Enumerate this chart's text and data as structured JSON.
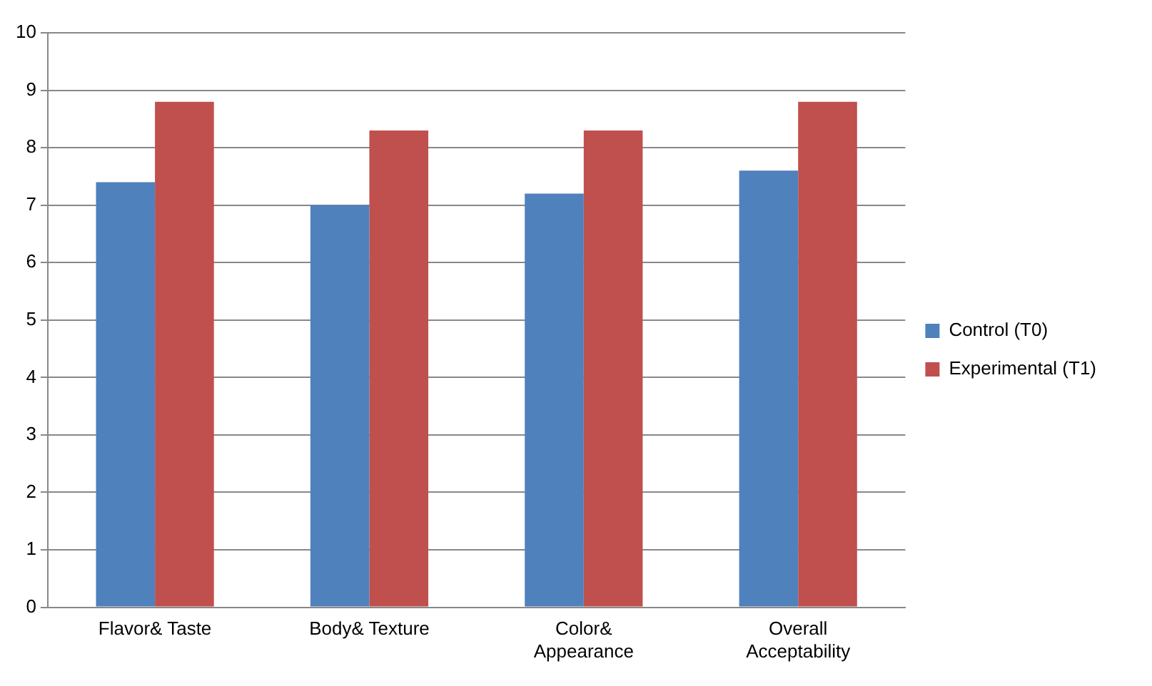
{
  "chart_data": {
    "type": "bar",
    "categories": [
      "Flavor& Taste",
      "Body& Texture",
      "Color& Appearance",
      "Overall Acceptability"
    ],
    "series": [
      {
        "name": "Control (T0)",
        "color": "#4f81bd",
        "values": [
          7.4,
          7.0,
          7.2,
          7.6
        ]
      },
      {
        "name": "Experimental (T1)",
        "color": "#c0504d",
        "values": [
          8.8,
          8.3,
          8.3,
          8.8
        ]
      }
    ],
    "ylim": [
      0,
      10
    ],
    "yticks": [
      0,
      1,
      2,
      3,
      4,
      5,
      6,
      7,
      8,
      9,
      10
    ],
    "grid": "y",
    "legend": "right"
  }
}
